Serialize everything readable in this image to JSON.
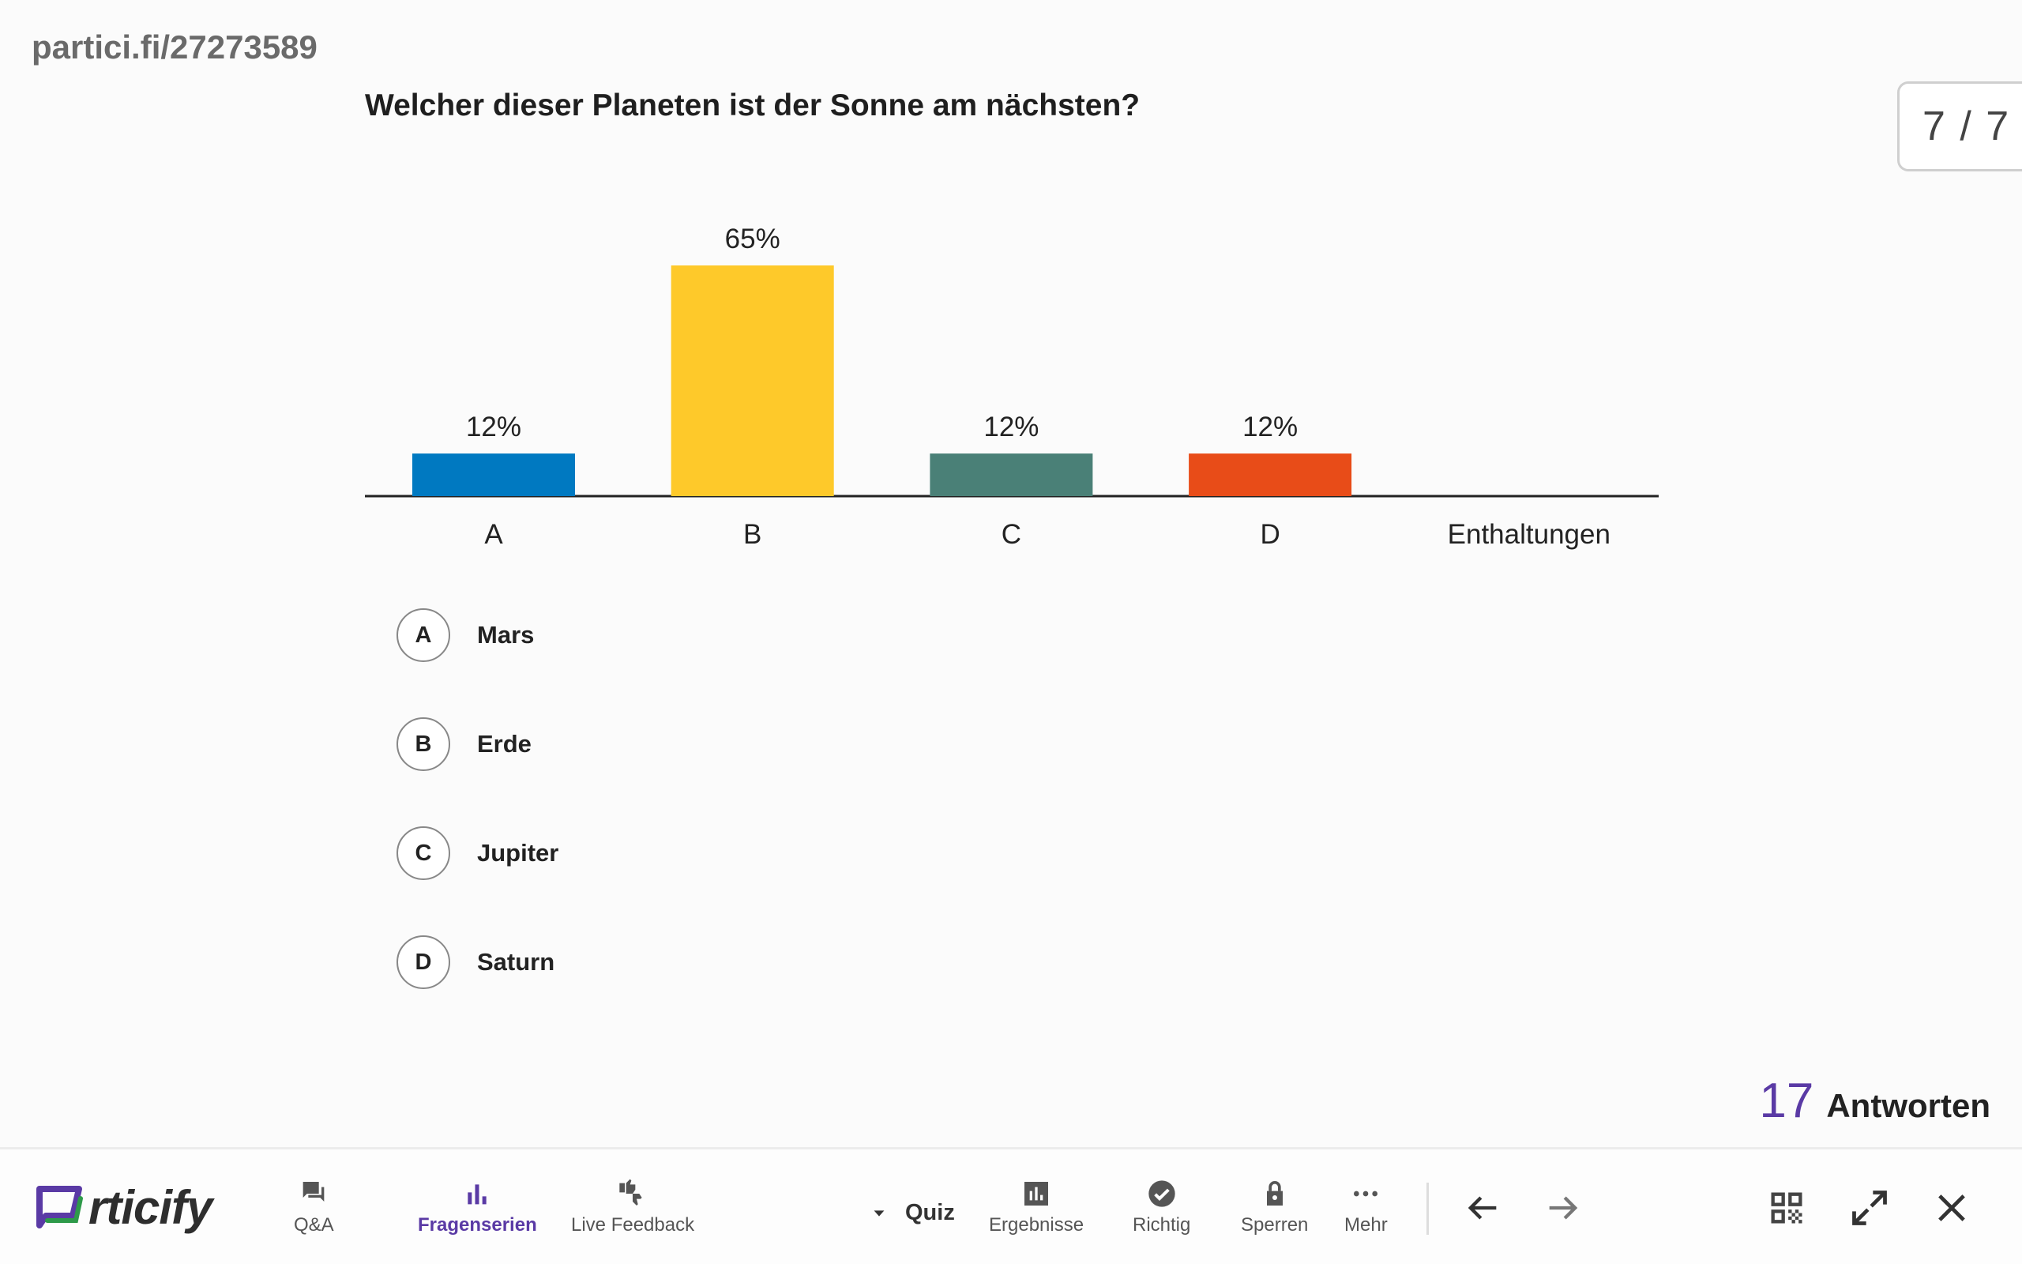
{
  "session_url": "partici.fi/27273589",
  "question": "Welcher dieser Planeten ist der Sonne am nächsten?",
  "slide_counter": "7 / 7",
  "chart_data": {
    "type": "bar",
    "categories": [
      "A",
      "B",
      "C",
      "D",
      "Enthaltungen"
    ],
    "values": [
      12,
      65,
      12,
      12,
      0
    ],
    "value_labels": [
      "12%",
      "65%",
      "12%",
      "12%",
      ""
    ],
    "colors": [
      "#0079c1",
      "#fec92a",
      "#4a8077",
      "#e84c18",
      "#cccccc"
    ],
    "ylim": [
      0,
      65
    ]
  },
  "answers": [
    {
      "letter": "A",
      "text": "Mars"
    },
    {
      "letter": "B",
      "text": "Erde"
    },
    {
      "letter": "C",
      "text": "Jupiter"
    },
    {
      "letter": "D",
      "text": "Saturn"
    }
  ],
  "responses": {
    "count": "17",
    "label": "Antworten"
  },
  "bottombar": {
    "logo_text": "rticify",
    "nav": [
      {
        "label": "Q&A",
        "icon": "chat-icon"
      },
      {
        "label": "Fragenserien",
        "icon": "bar-chart-icon",
        "active": true
      },
      {
        "label": "Live Feedback",
        "icon": "thumbs-icon"
      }
    ],
    "quiz_label": "Quiz",
    "actions": [
      {
        "label": "Ergebnisse",
        "icon": "results-icon"
      },
      {
        "label": "Richtig",
        "icon": "check-circle-icon"
      },
      {
        "label": "Sperren",
        "icon": "lock-icon"
      },
      {
        "label": "Mehr",
        "icon": "more-icon"
      }
    ],
    "accent_color": "#5a3aa5"
  }
}
